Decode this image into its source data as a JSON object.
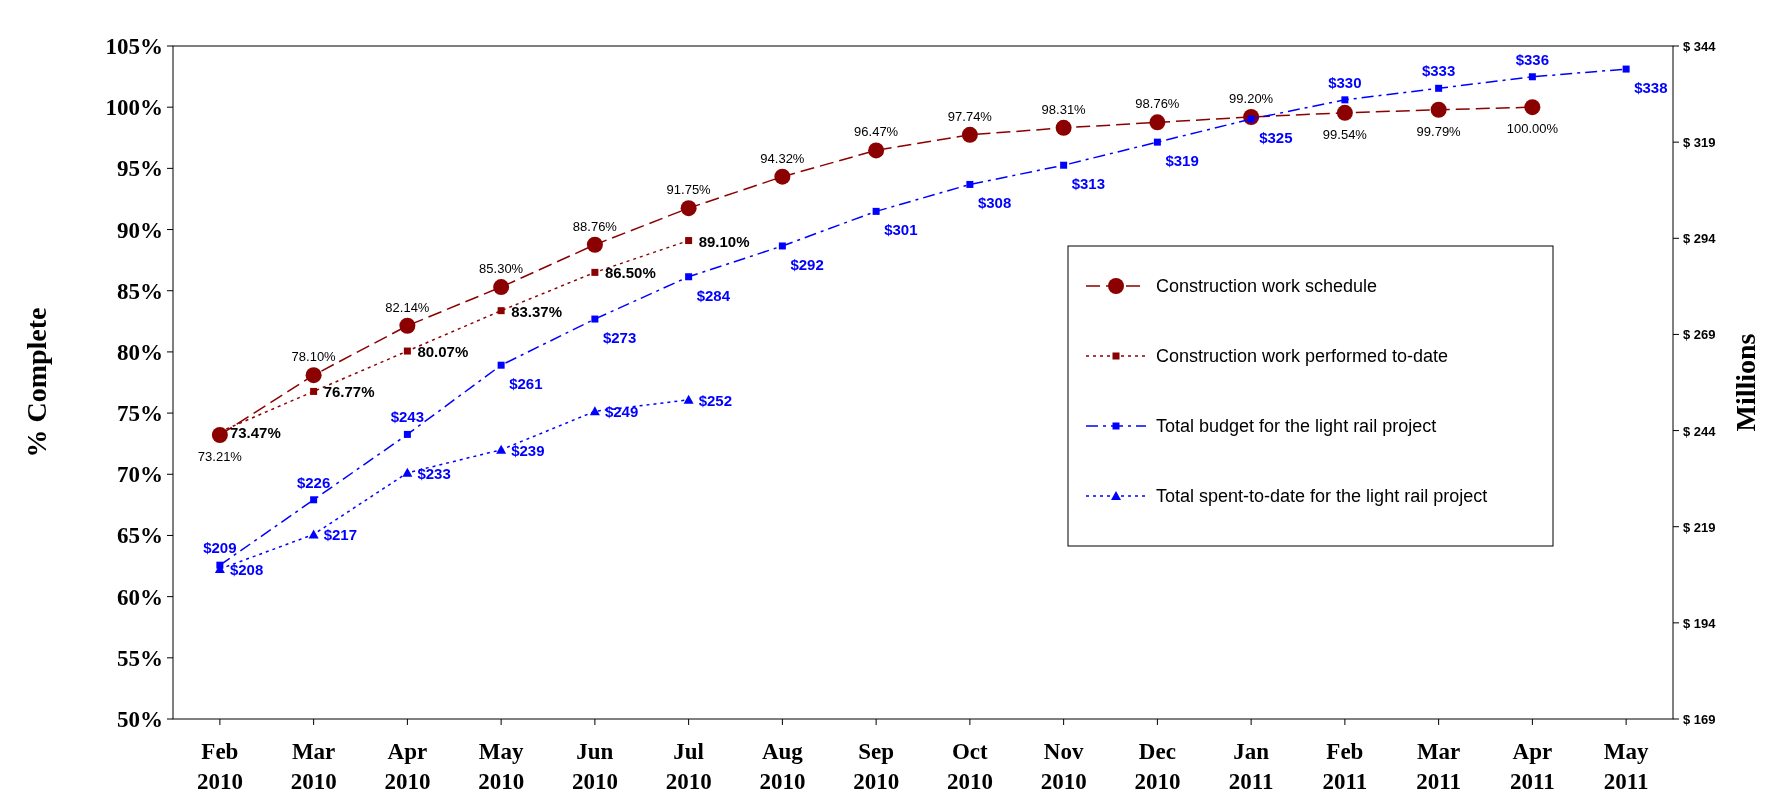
{
  "chart_data": {
    "type": "line",
    "ylabel": "% Complete",
    "y2label": "Millions",
    "categories": [
      "Feb 2010",
      "Mar 2010",
      "Apr 2010",
      "May 2010",
      "Jun 2010",
      "Jul 2010",
      "Aug 2010",
      "Sep 2010",
      "Oct 2010",
      "Nov 2010",
      "Dec 2010",
      "Jan 2011",
      "Feb 2011",
      "Mar 2011",
      "Apr 2011",
      "May 2011"
    ],
    "ylim": [
      50,
      105
    ],
    "yticks": [
      {
        "value": 50,
        "label": "50%"
      },
      {
        "value": 55,
        "label": "55%"
      },
      {
        "value": 60,
        "label": "60%"
      },
      {
        "value": 65,
        "label": "65%"
      },
      {
        "value": 70,
        "label": "70%"
      },
      {
        "value": 75,
        "label": "75%"
      },
      {
        "value": 80,
        "label": "80%"
      },
      {
        "value": 85,
        "label": "85%"
      },
      {
        "value": 90,
        "label": "90%"
      },
      {
        "value": 95,
        "label": "95%"
      },
      {
        "value": 100,
        "label": "100%"
      },
      {
        "value": 105,
        "label": "105%"
      }
    ],
    "y2lim": [
      169,
      344
    ],
    "y2ticks": [
      {
        "value": 169,
        "label": "$ 169"
      },
      {
        "value": 194,
        "label": "$ 194"
      },
      {
        "value": 219,
        "label": "$ 219"
      },
      {
        "value": 244,
        "label": "$ 244"
      },
      {
        "value": 269,
        "label": "$ 269"
      },
      {
        "value": 294,
        "label": "$ 294"
      },
      {
        "value": 319,
        "label": "$ 319"
      },
      {
        "value": 344,
        "label": "$ 344"
      }
    ],
    "grid": false,
    "legend": "right",
    "series": [
      {
        "name": "Construction work schedule",
        "color": "#8b0000",
        "marker": "circle",
        "line_style": "dashed",
        "values": [
          73.21,
          78.1,
          82.14,
          85.3,
          88.76,
          91.75,
          94.32,
          96.47,
          97.74,
          98.31,
          98.76,
          99.2,
          99.54,
          99.79,
          100.0,
          null
        ],
        "value_labels": [
          "73.21%",
          "78.10%",
          "82.14%",
          "85.30%",
          "88.76%",
          "91.75%",
          "94.32%",
          "96.47%",
          "97.74%",
          "98.31%",
          "98.76%",
          "99.20%",
          "99.54%",
          "99.79%",
          "100.00%",
          null
        ]
      },
      {
        "name": "Construction work performed to-date",
        "color": "#8b0000",
        "marker": "square",
        "line_style": "dotted",
        "values": [
          73.47,
          76.77,
          80.07,
          83.37,
          86.5,
          89.1,
          null,
          null,
          null,
          null,
          null,
          null,
          null,
          null,
          null,
          null
        ],
        "value_labels": [
          "73.47%",
          "76.77%",
          "80.07%",
          "83.37%",
          "86.50%",
          "89.10%",
          null,
          null,
          null,
          null,
          null,
          null,
          null,
          null,
          null,
          null
        ]
      },
      {
        "name": "Total budget for the light rail project",
        "color": "#0000ff",
        "marker": "square",
        "line_style": "dashdot",
        "axis": "y2",
        "values": [
          209,
          226,
          243,
          261,
          273,
          284,
          292,
          301,
          308,
          313,
          319,
          325,
          330,
          333,
          336,
          338
        ],
        "value_labels": [
          "$209",
          "$226",
          "$243",
          "$261",
          "$273",
          "$284",
          "$292",
          "$301",
          "$308",
          "$313",
          "$319",
          "$325",
          "$330",
          "$333",
          "$336",
          "$338"
        ]
      },
      {
        "name": "Total spent-to-date for the light rail project",
        "color": "#0000ff",
        "marker": "triangle",
        "line_style": "dotted",
        "axis": "y2",
        "values": [
          208,
          217,
          233,
          239,
          249,
          252,
          null,
          null,
          null,
          null,
          null,
          null,
          null,
          null,
          null,
          null
        ],
        "value_labels": [
          "$208",
          "$217",
          "$233",
          "$239",
          "$249",
          "$252",
          null,
          null,
          null,
          null,
          null,
          null,
          null,
          null,
          null,
          null
        ]
      }
    ]
  }
}
